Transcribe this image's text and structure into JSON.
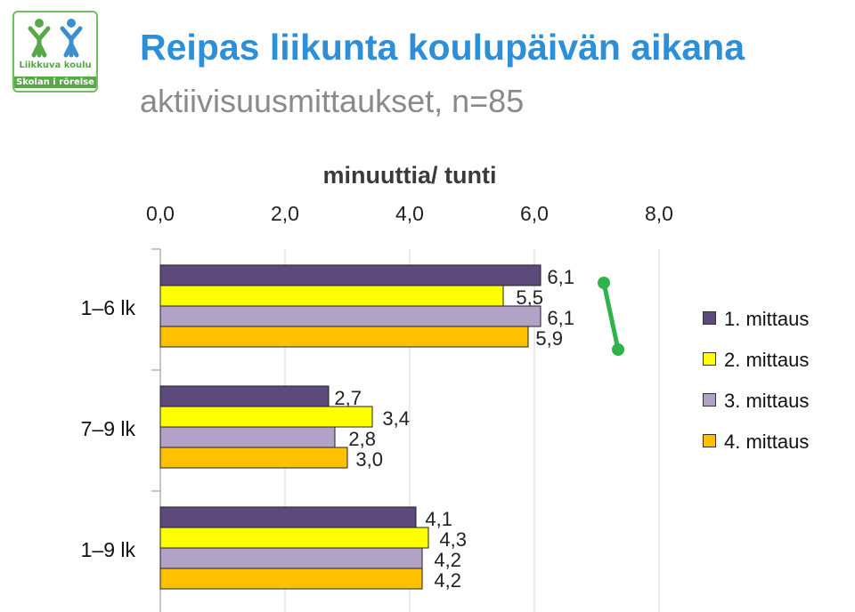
{
  "logo": {
    "line1": "Liikkuva koulu",
    "line2": "Skolan i rörelse"
  },
  "header": {
    "title": "Reipas liikunta koulupäivän aikana",
    "subtitle": "aktiivisuusmittaukset, n=85"
  },
  "chart_data": {
    "type": "bar",
    "orientation": "horizontal",
    "title": "minuuttia/ tunti",
    "xaxis_position": "top",
    "xlim": [
      0,
      8
    ],
    "xticks": [
      "0,0",
      "2,0",
      "4,0",
      "6,0",
      "8,0"
    ],
    "categories": [
      "1–6 lk",
      "7–9 lk",
      "1–9 lk"
    ],
    "series": [
      {
        "name": "1. mittaus",
        "color": "#5b4a7a",
        "values": [
          6.1,
          2.7,
          4.1
        ],
        "labels": [
          "6,1",
          "2,7",
          "4,1"
        ]
      },
      {
        "name": "2. mittaus",
        "color": "#ffff00",
        "values": [
          5.5,
          3.4,
          4.3
        ],
        "labels": [
          "5,5",
          "3,4",
          "4,3"
        ]
      },
      {
        "name": "3. mittaus",
        "color": "#b2a2c7",
        "values": [
          6.1,
          2.8,
          4.2
        ],
        "labels": [
          "6,1",
          "2,8",
          "4,2"
        ]
      },
      {
        "name": "4. mittaus",
        "color": "#ffc000",
        "values": [
          5.9,
          3.0,
          4.2
        ],
        "labels": [
          "5,9",
          "3,0",
          "4,2"
        ]
      }
    ],
    "grid": true,
    "legend_position": "right",
    "annotation": {
      "type": "green-line-segment",
      "color": "#2fb34a"
    }
  }
}
